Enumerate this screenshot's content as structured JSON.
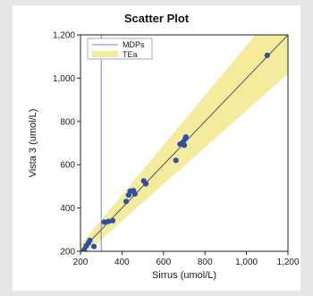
{
  "chart_data": {
    "type": "scatter",
    "title": "Scatter Plot",
    "xlabel": "Sirrus (umol/L)",
    "ylabel": "Vista 3 (umol/L)",
    "xlim": [
      200,
      1200
    ],
    "ylim": [
      200,
      1200
    ],
    "x_ticks": [
      200,
      400,
      600,
      800,
      1000,
      1200
    ],
    "y_ticks": [
      200,
      400,
      600,
      800,
      1000,
      1200
    ],
    "x_tick_labels": [
      "200",
      "400",
      "600",
      "800",
      "1,000",
      "1,200"
    ],
    "y_tick_labels": [
      "200",
      "400",
      "600",
      "800",
      "1,000",
      "1,200"
    ],
    "grid": false,
    "legend": {
      "placement": "top-left",
      "entries": [
        {
          "label": "MDPs",
          "style": "line",
          "color": "#7b7fd6"
        },
        {
          "label": "TEa",
          "style": "fill",
          "color": "#f4ec9c"
        }
      ]
    },
    "mdp_line_x": 300,
    "identity_line": {
      "slope": 1,
      "intercept": 0
    },
    "tea_fraction": 0.15,
    "colors": {
      "points": "#2f4ea8",
      "tea_band": "#f4ec9c",
      "mdp_line": "#7b7fd6",
      "identity_line": "#555555"
    },
    "points": [
      {
        "x": 218,
        "y": 208
      },
      {
        "x": 228,
        "y": 225
      },
      {
        "x": 238,
        "y": 238
      },
      {
        "x": 245,
        "y": 250
      },
      {
        "x": 265,
        "y": 222
      },
      {
        "x": 315,
        "y": 335
      },
      {
        "x": 335,
        "y": 338
      },
      {
        "x": 355,
        "y": 342
      },
      {
        "x": 420,
        "y": 430
      },
      {
        "x": 432,
        "y": 460
      },
      {
        "x": 440,
        "y": 478
      },
      {
        "x": 455,
        "y": 480
      },
      {
        "x": 462,
        "y": 465
      },
      {
        "x": 505,
        "y": 525
      },
      {
        "x": 515,
        "y": 512
      },
      {
        "x": 660,
        "y": 620
      },
      {
        "x": 680,
        "y": 695
      },
      {
        "x": 695,
        "y": 705
      },
      {
        "x": 700,
        "y": 690
      },
      {
        "x": 705,
        "y": 720
      },
      {
        "x": 708,
        "y": 728
      },
      {
        "x": 1100,
        "y": 1105
      }
    ]
  }
}
